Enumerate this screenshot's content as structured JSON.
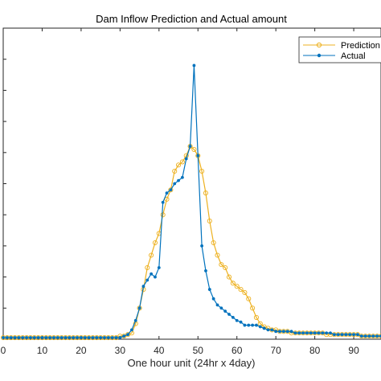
{
  "chart_data": {
    "type": "line",
    "title": "Dam Inflow Prediction and Actual amount",
    "xlabel": "One hour unit (24hr x 4day)",
    "ylabel": "",
    "xlim": [
      0,
      97
    ],
    "ylim": [
      0,
      1000
    ],
    "xticks": [
      0,
      10,
      20,
      30,
      40,
      50,
      60,
      70,
      80,
      90
    ],
    "xtick_labels": [
      "0",
      "10",
      "20",
      "30",
      "40",
      "50",
      "60",
      "70",
      "80",
      "90"
    ],
    "grid": false,
    "legend": "top-right",
    "series": [
      {
        "name": "Prediction",
        "color": "#EDB120",
        "marker": "open-circle",
        "x": [
          0,
          1,
          2,
          3,
          4,
          5,
          6,
          7,
          8,
          9,
          10,
          11,
          12,
          13,
          14,
          15,
          16,
          17,
          18,
          19,
          20,
          21,
          22,
          23,
          24,
          25,
          26,
          27,
          28,
          29,
          30,
          31,
          32,
          33,
          34,
          35,
          36,
          37,
          38,
          39,
          40,
          41,
          42,
          43,
          44,
          45,
          46,
          47,
          48,
          49,
          50,
          51,
          52,
          53,
          54,
          55,
          56,
          57,
          58,
          59,
          60,
          61,
          62,
          63,
          64,
          65,
          66,
          67,
          68,
          69,
          70,
          71,
          72,
          73,
          74,
          75,
          76,
          77,
          78,
          79,
          80,
          81,
          82,
          83,
          84,
          85,
          86,
          87,
          88,
          89,
          90,
          91,
          92,
          93,
          94,
          95,
          96,
          97
        ],
        "values": [
          5,
          5,
          5,
          5,
          5,
          5,
          5,
          5,
          5,
          5,
          5,
          5,
          5,
          5,
          5,
          5,
          5,
          5,
          5,
          5,
          5,
          5,
          5,
          5,
          5,
          5,
          5,
          5,
          5,
          5,
          10,
          10,
          15,
          20,
          50,
          100,
          160,
          230,
          270,
          310,
          340,
          400,
          450,
          480,
          540,
          560,
          570,
          590,
          620,
          610,
          590,
          540,
          470,
          380,
          310,
          270,
          240,
          230,
          200,
          180,
          170,
          160,
          150,
          130,
          100,
          70,
          50,
          40,
          35,
          30,
          30,
          25,
          25,
          25,
          20,
          20,
          20,
          20,
          20,
          20,
          20,
          20,
          20,
          15,
          15,
          15,
          15,
          15,
          15,
          15,
          15,
          15,
          10,
          10,
          10,
          10,
          10,
          10
        ]
      },
      {
        "name": "Actual",
        "color": "#0072BD",
        "marker": "filled-dot",
        "x": [
          0,
          1,
          2,
          3,
          4,
          5,
          6,
          7,
          8,
          9,
          10,
          11,
          12,
          13,
          14,
          15,
          16,
          17,
          18,
          19,
          20,
          21,
          22,
          23,
          24,
          25,
          26,
          27,
          28,
          29,
          30,
          31,
          32,
          33,
          34,
          35,
          36,
          37,
          38,
          39,
          40,
          41,
          42,
          43,
          44,
          45,
          46,
          47,
          48,
          49,
          50,
          51,
          52,
          53,
          54,
          55,
          56,
          57,
          58,
          59,
          60,
          61,
          62,
          63,
          64,
          65,
          66,
          67,
          68,
          69,
          70,
          71,
          72,
          73,
          74,
          75,
          76,
          77,
          78,
          79,
          80,
          81,
          82,
          83,
          84,
          85,
          86,
          87,
          88,
          89,
          90,
          91,
          92,
          93,
          94,
          95,
          96,
          97
        ],
        "values": [
          5,
          5,
          5,
          5,
          5,
          5,
          5,
          5,
          5,
          5,
          5,
          5,
          5,
          5,
          5,
          5,
          5,
          5,
          5,
          5,
          5,
          5,
          5,
          5,
          5,
          5,
          5,
          5,
          5,
          5,
          5,
          10,
          15,
          30,
          60,
          100,
          170,
          190,
          210,
          200,
          230,
          440,
          470,
          480,
          500,
          510,
          520,
          580,
          620,
          880,
          590,
          300,
          220,
          160,
          130,
          110,
          100,
          90,
          80,
          70,
          60,
          55,
          45,
          45,
          45,
          45,
          40,
          35,
          30,
          30,
          25,
          25,
          25,
          25,
          25,
          20,
          20,
          20,
          20,
          20,
          20,
          20,
          20,
          20,
          20,
          15,
          15,
          15,
          15,
          15,
          15,
          15,
          10,
          10,
          10,
          10,
          10,
          10
        ]
      }
    ]
  }
}
